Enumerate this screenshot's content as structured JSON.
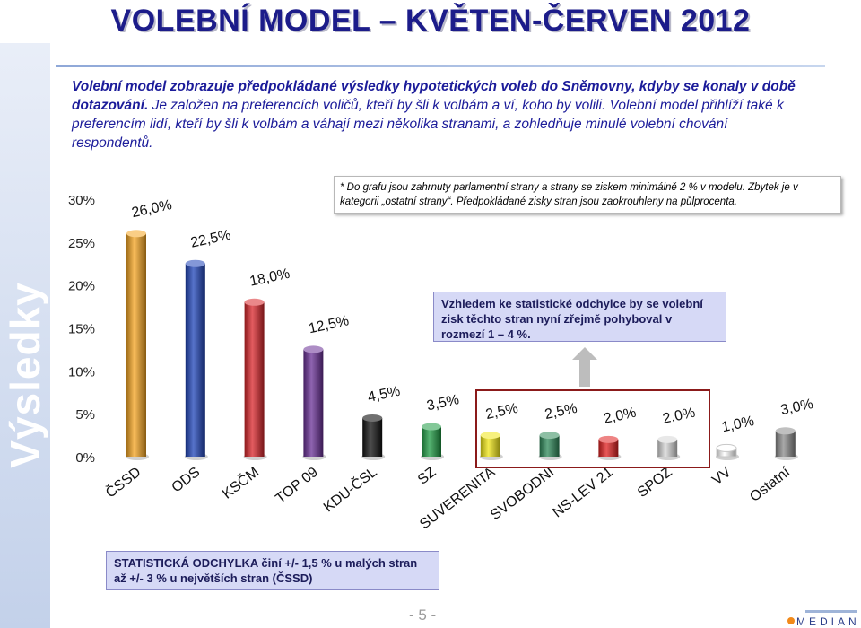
{
  "page": {
    "title": "VOLEBNÍ MODEL – KVĚTEN-ČERVEN 2012",
    "side_label": "Výsledky",
    "intro_bold": "Volební model zobrazuje předpokládané výsledky hypotetických voleb do Sněmovny, kdyby se konaly v době dotazování.",
    "intro_rest": " Je založen na preferencích voličů, kteří by šli k volbám a ví, koho by volili. Volební model přihlíží také k preferencím lidí, kteří by šli k volbám a váhají mezi několika stranami, a zohledňuje minulé volební chování respondentů.",
    "note": "* Do grafu jsou zahrnuty parlamentní strany a strany se ziskem minimálně 2 % v modelu. Zbytek je v kategorii „ostatní strany“. Předpokládané zisky stran jsou zaokrouhleny na půlprocenta.",
    "callout": "Vzhledem ke statistické odchylce by se volební zisk těchto stran nyní zřejmě pohyboval v rozmezí 1 – 4 %.",
    "stat_note": "STATISTICKÁ ODCHYLKA činí +/- 1,5 % u malých stran až +/- 3 % u největších stran (ČSSD)",
    "page_number": "- 5 -",
    "logo": "MEDIAN"
  },
  "chart_data": {
    "type": "bar",
    "categories": [
      "ČSSD",
      "ODS",
      "KSČM",
      "TOP 09",
      "KDU-ČSL",
      "SZ",
      "SUVERENITA",
      "SVOBODNI",
      "NS-LEV 21",
      "SPOZ",
      "VV",
      "Ostatní"
    ],
    "values": [
      26.0,
      22.5,
      18.0,
      12.5,
      4.5,
      3.5,
      2.5,
      2.5,
      2.0,
      2.0,
      1.0,
      3.0
    ],
    "data_labels": [
      "26,0%",
      "22,5%",
      "18,0%",
      "12,5%",
      "4,5%",
      "3,5%",
      "2,5%",
      "2,5%",
      "2,0%",
      "2,0%",
      "1,0%",
      "3,0%"
    ],
    "colors": [
      "#f5a623",
      "#1f44b8",
      "#d9262b",
      "#6a3096",
      "#111111",
      "#1e9b43",
      "#f0e615",
      "#2f8a5a",
      "#e02020",
      "#d6d6d6",
      "#ffffff",
      "#8c8c8c"
    ],
    "yticks": [
      "0%",
      "5%",
      "10%",
      "15%",
      "20%",
      "25%",
      "30%"
    ],
    "ylim": [
      0,
      30
    ],
    "xlabel": "",
    "ylabel": "",
    "grid": false
  }
}
